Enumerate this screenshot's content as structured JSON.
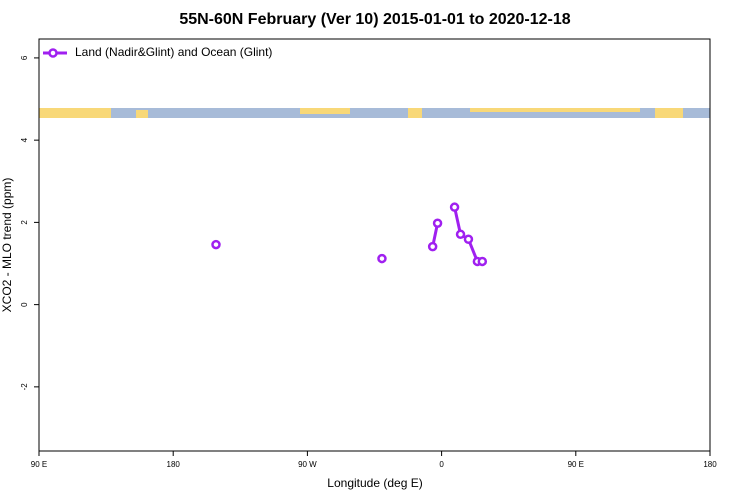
{
  "chart_data": {
    "type": "line",
    "title": "55N-60N February (Ver 10)   2015-01-01 to 2020-12-18",
    "x_label": "Longitude (deg E)",
    "y_label": "XCO2 - MLO trend (ppm)",
    "x": [
      -151.3,
      null,
      -40,
      null,
      -6,
      -2.7,
      null,
      8.7,
      12.7,
      18,
      24,
      27.3
    ],
    "series": [
      {
        "name": "Land (Nadir&Glint) and Ocean (Glint)",
        "color": "#a020f0",
        "values": [
          1.46,
          null,
          1.12,
          null,
          1.41,
          1.98,
          null,
          2.37,
          1.71,
          1.59,
          1.05,
          1.05
        ]
      }
    ],
    "xlim": [
      -270,
      180
    ],
    "xticks": [
      {
        "value": -270,
        "label": "90 E"
      },
      {
        "value": -180,
        "label": "180"
      },
      {
        "value": -90,
        "label": "90 W"
      },
      0,
      {
        "value": 90,
        "label": "90 E"
      },
      180
    ],
    "ylim": [
      -3.56,
      6.46
    ],
    "yticks": [
      -2,
      0,
      2,
      4,
      6
    ],
    "legend": "top-left"
  }
}
